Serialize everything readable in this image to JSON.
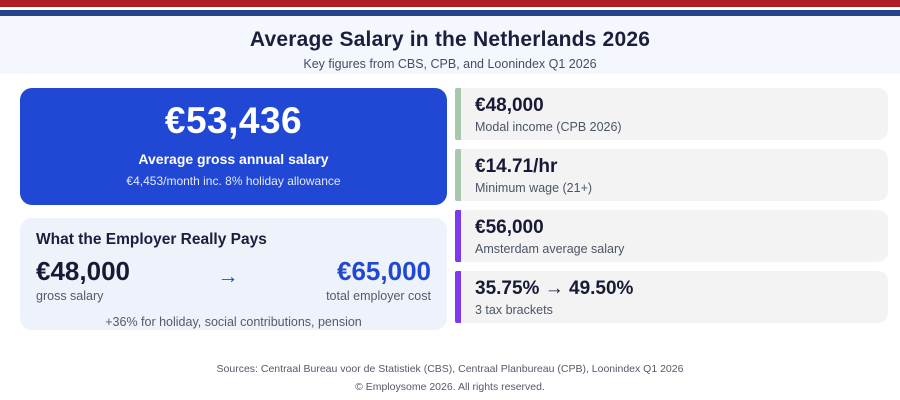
{
  "colors": {
    "flag_red": "#ae1c28",
    "flag_blue": "#21468b",
    "hero_blue": "#2147d5",
    "accent_green": "#a9c7ac",
    "accent_purple": "#7b3aed",
    "accent_blue_text": "#2147d5"
  },
  "header": {
    "title": "Average Salary in the Netherlands 2026",
    "subtitle": "Key figures from CBS, CPB, and Loonindex Q1 2026"
  },
  "hero_card": {
    "value": "€53,436",
    "label": "Average gross annual salary",
    "sublabel": "€4,453/month inc. 8% holiday allowance"
  },
  "employer_card": {
    "title": "What the Employer Really Pays",
    "from_value": "€48,000",
    "from_label": "gross salary",
    "arrow": "→",
    "to_value": "€65,000",
    "to_label": "total employer cost",
    "footnote": "+36% for holiday, social contributions, pension"
  },
  "stats": [
    {
      "value": "€48,000",
      "label": "Modal income (CPB 2026)"
    },
    {
      "value": "€14.71/hr",
      "label": "Minimum wage (21+)"
    },
    {
      "value": "€56,000",
      "label": "Amsterdam average salary"
    },
    {
      "value": "35.75% → 49.50%",
      "label": "3 tax brackets"
    }
  ],
  "footer": {
    "sources": "Sources: Centraal Bureau voor de Statistiek (CBS), Centraal Planbureau (CPB), Loonindex Q1 2026",
    "copyright": "© Employsome 2026. All rights reserved."
  }
}
